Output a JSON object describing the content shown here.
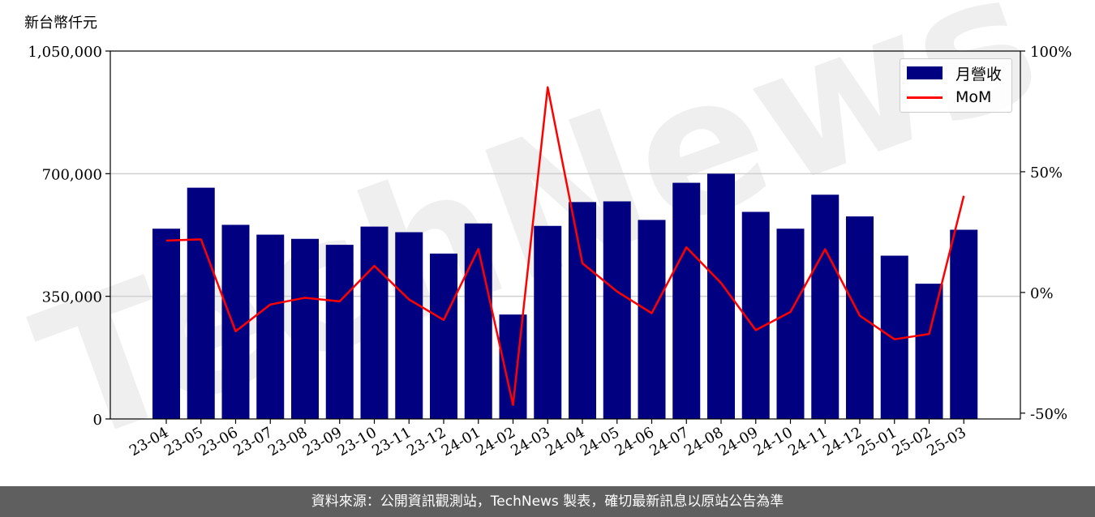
{
  "unit_label": "新台幣仟元",
  "footer": "資料來源：公開資訊觀測站，TechNews 製表，確切最新訊息以原站公告為準",
  "watermark": "TechNews",
  "chart_data": {
    "type": "bar",
    "categories": [
      "23-04",
      "23-05",
      "23-06",
      "23-07",
      "23-08",
      "23-09",
      "23-10",
      "23-11",
      "23-12",
      "24-01",
      "24-02",
      "24-03",
      "24-04",
      "24-05",
      "24-06",
      "24-07",
      "24-08",
      "24-09",
      "24-10",
      "24-11",
      "24-12",
      "25-01",
      "25-02",
      "25-03"
    ],
    "series": [
      {
        "name": "月營收",
        "type": "bar",
        "axis": "left",
        "color": "#000080",
        "values": [
          543000,
          660000,
          554000,
          526000,
          514000,
          497000,
          549000,
          533000,
          472000,
          558000,
          298000,
          551000,
          619000,
          621000,
          568000,
          674000,
          700000,
          591000,
          543000,
          640000,
          578000,
          466000,
          386000,
          540000
        ]
      },
      {
        "name": "MoM",
        "type": "line",
        "axis": "right",
        "color": "#ff0000",
        "values": [
          21.5,
          22.0,
          -16.1,
          -5.0,
          -2.2,
          -3.7,
          11.0,
          -2.9,
          -11.4,
          18.0,
          -46.6,
          85.0,
          12.1,
          0.4,
          -8.6,
          18.7,
          3.9,
          -15.6,
          -8.1,
          17.9,
          -9.6,
          -19.4,
          -17.2,
          40.0
        ]
      }
    ],
    "y_left": {
      "ylim": [
        0,
        1050000
      ],
      "ticks": [
        0,
        350000,
        700000,
        1050000
      ],
      "tick_labels": [
        "0",
        "350,000",
        "700,000",
        "1,050,000"
      ]
    },
    "y_right": {
      "ylim": [
        -52.4,
        100
      ],
      "ticks": [
        -50,
        0,
        50,
        100
      ],
      "tick_labels": [
        "-50%",
        "0%",
        "50%",
        "100%"
      ]
    },
    "grid": "horizontal",
    "legend": "top-right"
  }
}
